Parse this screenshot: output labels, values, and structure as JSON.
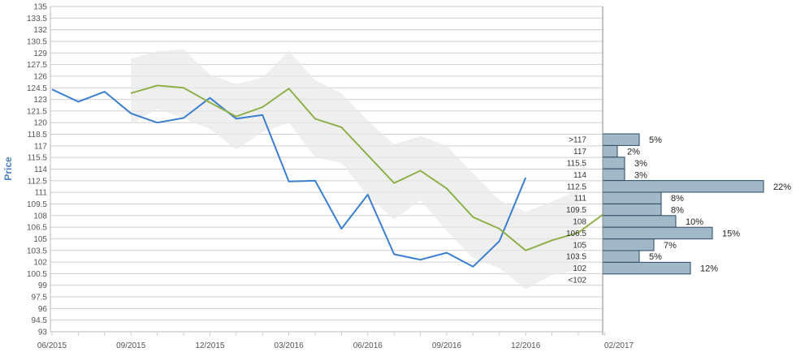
{
  "chart_data": {
    "type": "line",
    "ylabel": "Price",
    "ylim": [
      93,
      135
    ],
    "y_ticks": [
      "93",
      "94.5",
      "96",
      "97.5",
      "99",
      "100.5",
      "102",
      "103.5",
      "105",
      "106.5",
      "108",
      "109.5",
      "111",
      "112.5",
      "114",
      "115.5",
      "117",
      "118.5",
      "120",
      "121.5",
      "123",
      "124.5",
      "126",
      "127.5",
      "129",
      "130.5",
      "132",
      "133.5",
      "135"
    ],
    "x_ticks": [
      "06/2015",
      "09/2015",
      "12/2015",
      "03/2016",
      "06/2016",
      "09/2016",
      "12/2016",
      "02/2017"
    ],
    "grid": true,
    "series": [
      {
        "role": "history",
        "color": "#3a7fd0",
        "values": [
          [
            0,
            124.3
          ],
          [
            1,
            122.7
          ],
          [
            2,
            124.0
          ],
          [
            3,
            121.2
          ],
          [
            4,
            120.0
          ],
          [
            5,
            120.6
          ],
          [
            6,
            123.2
          ],
          [
            7,
            120.5
          ],
          [
            8,
            121.0
          ],
          [
            9,
            112.4
          ],
          [
            10,
            112.5
          ],
          [
            11,
            106.3
          ],
          [
            12,
            110.7
          ],
          [
            13,
            103.0
          ],
          [
            14,
            102.3
          ],
          [
            15,
            103.2
          ],
          [
            16,
            101.4
          ],
          [
            17,
            104.7
          ],
          [
            18,
            112.9
          ]
        ]
      },
      {
        "role": "forecast",
        "color": "#8fb04a",
        "values": [
          [
            3,
            123.8
          ],
          [
            4,
            124.8
          ],
          [
            5,
            124.5
          ],
          [
            6,
            122.6
          ],
          [
            7,
            120.8
          ],
          [
            8,
            122.0
          ],
          [
            9,
            124.4
          ],
          [
            10,
            120.5
          ],
          [
            11,
            119.4
          ],
          [
            12,
            115.8
          ],
          [
            13,
            112.2
          ],
          [
            14,
            113.8
          ],
          [
            15,
            111.5
          ],
          [
            16,
            107.8
          ],
          [
            17,
            106.3
          ],
          [
            18,
            103.5
          ],
          [
            19,
            104.8
          ],
          [
            20,
            105.8
          ],
          [
            21,
            108.3
          ]
        ]
      },
      {
        "role": "range",
        "color": "#e8e8e8",
        "upper": [
          [
            3,
            128.3
          ],
          [
            4,
            129.2
          ],
          [
            5,
            129.5
          ],
          [
            6,
            126.2
          ],
          [
            7,
            125.0
          ],
          [
            8,
            125.8
          ],
          [
            9,
            129.3
          ],
          [
            10,
            125.5
          ],
          [
            11,
            123.8
          ],
          [
            12,
            120.3
          ],
          [
            13,
            117.2
          ],
          [
            14,
            118.3
          ],
          [
            15,
            117.0
          ],
          [
            16,
            113.5
          ],
          [
            17,
            110.0
          ],
          [
            18,
            108.5
          ],
          [
            19,
            109.8
          ],
          [
            20,
            111.3
          ]
        ],
        "lower": [
          [
            3,
            119.8
          ],
          [
            4,
            121.8
          ],
          [
            5,
            120.5
          ],
          [
            6,
            119.2
          ],
          [
            7,
            116.5
          ],
          [
            8,
            118.8
          ],
          [
            9,
            120.0
          ],
          [
            10,
            115.5
          ],
          [
            11,
            114.8
          ],
          [
            12,
            110.5
          ],
          [
            13,
            107.5
          ],
          [
            14,
            110.0
          ],
          [
            15,
            106.0
          ],
          [
            16,
            102.5
          ],
          [
            17,
            101.2
          ],
          [
            18,
            98.5
          ],
          [
            19,
            100.3
          ],
          [
            20,
            101.0
          ]
        ]
      }
    ],
    "histogram": {
      "color": "#a0b8c8",
      "bins": [
        {
          "label": ">117",
          "percent": 5,
          "text": "5%"
        },
        {
          "label": "117",
          "percent": 2,
          "text": "2%"
        },
        {
          "label": "115.5",
          "percent": 3,
          "text": "3%"
        },
        {
          "label": "114",
          "percent": 3,
          "text": "3%"
        },
        {
          "label": "112.5",
          "percent": 22,
          "text": "22%"
        },
        {
          "label": "111",
          "percent": 8,
          "text": "8%"
        },
        {
          "label": "109.5",
          "percent": 8,
          "text": "8%"
        },
        {
          "label": "108",
          "percent": 10,
          "text": "10%"
        },
        {
          "label": "106.5",
          "percent": 15,
          "text": "15%"
        },
        {
          "label": "105",
          "percent": 7,
          "text": "7%"
        },
        {
          "label": "103.5",
          "percent": 5,
          "text": "5%"
        },
        {
          "label": "102",
          "percent": 12,
          "text": "12%"
        },
        {
          "label": "<102",
          "percent": 0,
          "text": ""
        }
      ]
    }
  }
}
